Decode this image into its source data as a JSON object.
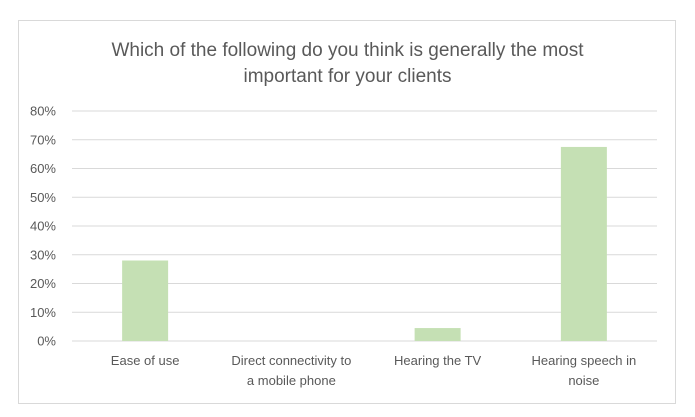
{
  "chart_data": {
    "type": "bar",
    "title": "Which of the following do you think is generally the most\nimportant for your clients",
    "categories": [
      [
        "Ease of use"
      ],
      [
        "Direct connectivity to",
        "a mobile phone"
      ],
      [
        "Hearing the TV"
      ],
      [
        "Hearing speech in",
        "noise"
      ]
    ],
    "values": [
      0.28,
      0.0,
      0.045,
      0.675
    ],
    "ylim": [
      0,
      0.8
    ],
    "yticks": [
      "0%",
      "10%",
      "20%",
      "30%",
      "40%",
      "50%",
      "60%",
      "70%",
      "80%"
    ],
    "bar_color": "#c5e0b4",
    "gridlines": true,
    "legend": "none"
  }
}
